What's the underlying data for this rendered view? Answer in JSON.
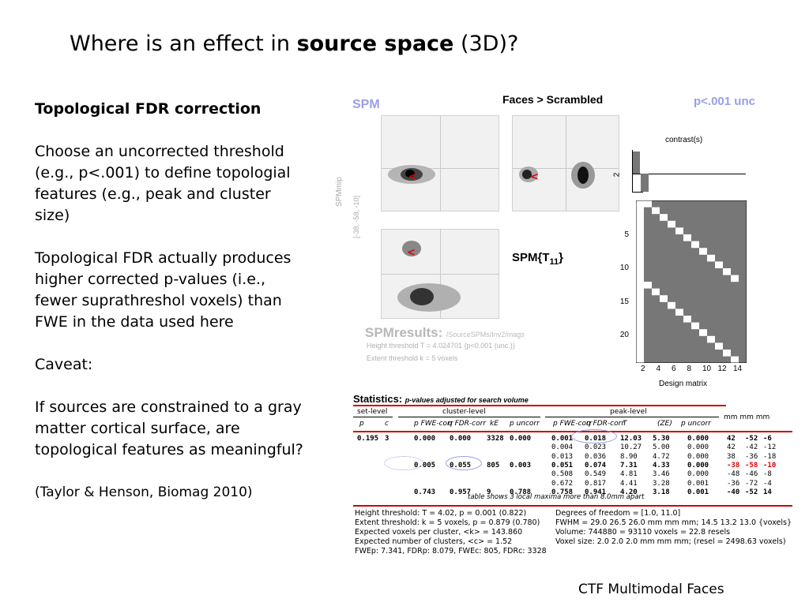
{
  "title": {
    "prefix": "Where is an effect in ",
    "bold": "source space",
    "suffix": " (3D)?"
  },
  "left": {
    "heading": "Topological FDR correction",
    "para1": "Choose an uncorrected threshold (e.g., p<.001) to define topologial features (e.g., peak and cluster size)",
    "para2": "Topological FDR actually produces higher corrected p-values (i.e., fewer suprathreshol voxels) than FWE in the data used here",
    "para3": "Caveat:",
    "para4": "If sources are constrained to a gray matter cortical surface, are topological features as meaningful?",
    "ref": "(Taylor & Henson, Biomag 2010)"
  },
  "footer": "CTF Multimodal Faces",
  "spm": {
    "spm_label": "SPM",
    "contrast_name": "Faces > Scrambled",
    "threshold_label": "p<.001 unc",
    "mip_label": "SPMmip",
    "mip_coords": "[-38, -58, -10]",
    "stat_label": "SPM{T",
    "stat_sub": "11",
    "stat_close": "}",
    "results_big": "SPMresults:",
    "results_path": "/SourceSPMs/Inv2/mags",
    "height_thr": "Height threshold T = 4.024701  {p<0.001 (unc.)}",
    "extent_thr": "Extent threshold k = 5 voxels",
    "contrast_label": "contrast(s)",
    "contrast_tick": "2",
    "design_label": "Design matrix",
    "design_y_ticks": [
      "5",
      "10",
      "15",
      "20"
    ],
    "design_x_ticks": [
      "2",
      "4",
      "6",
      "8",
      "10",
      "12",
      "14"
    ],
    "arrow": "<"
  },
  "stats": {
    "title": "Statistics:",
    "subtitle": "p-values adjusted for search volume",
    "group_set": "set-level",
    "group_cluster": "cluster-level",
    "group_peak": "peak-level",
    "mm": "mm mm mm",
    "cols": [
      "p",
      "c",
      "p FWE-corr",
      "q FDR-corr",
      "kE",
      "p uncorr",
      "p FWE-corr",
      "q FDR-corr",
      "T",
      "(ZE)",
      "p uncorr"
    ],
    "rows": [
      [
        "0.195",
        "3",
        "0.000",
        "0.000",
        "3328",
        "0.000",
        "0.001",
        "0.018",
        "12.03",
        "5.30",
        "0.000",
        "42",
        "-52",
        "-6"
      ],
      [
        "",
        "",
        "",
        "",
        "",
        "",
        "0.004",
        "0.023",
        "10.27",
        "5.00",
        "0.000",
        "42",
        "-42",
        "-12"
      ],
      [
        "",
        "",
        "",
        "",
        "",
        "",
        "0.013",
        "0.036",
        "8.90",
        "4.72",
        "0.000",
        "38",
        "-36",
        "-18"
      ],
      [
        "",
        "",
        "0.005",
        "0.055",
        "805",
        "0.003",
        "0.051",
        "0.074",
        "7.31",
        "4.33",
        "0.000",
        "-38",
        "-58",
        "-10"
      ],
      [
        "",
        "",
        "",
        "",
        "",
        "",
        "0.508",
        "0.549",
        "4.81",
        "3.46",
        "0.000",
        "-48",
        "-46",
        "-8"
      ],
      [
        "",
        "",
        "",
        "",
        "",
        "",
        "0.672",
        "0.817",
        "4.41",
        "3.28",
        "0.001",
        "-36",
        "-72",
        "-4"
      ],
      [
        "",
        "",
        "0.743",
        "0.957",
        "9",
        "0.788",
        "0.758",
        "0.941",
        "4.20",
        "3.18",
        "0.001",
        "-40",
        "-52",
        "14"
      ]
    ],
    "table_note": "table shows 3 local maxima more than 8.0mm apart",
    "footnotes_left": [
      "Height threshold: T = 4.02, p = 0.001 (0.822)",
      "Extent threshold: k = 5 voxels, p = 0.879 (0.780)",
      "Expected voxels per cluster, <k> = 143.860",
      "Expected number of clusters, <c> = 1.52",
      "FWEp: 7.341, FDRp: 8.079, FWEc: 805, FDRc: 3328"
    ],
    "footnotes_right": [
      "Degrees of freedom = [1.0, 11.0]",
      "FWHM = 29.0 26.5 26.0 mm mm mm; 14.5 13.2 13.0 {voxels}",
      "Volume: 744880 = 93110 voxels = 22.8 resels",
      "Voxel size: 2.0 2.0 2.0 mm mm mm; (resel = 2498.63 voxels)"
    ]
  }
}
